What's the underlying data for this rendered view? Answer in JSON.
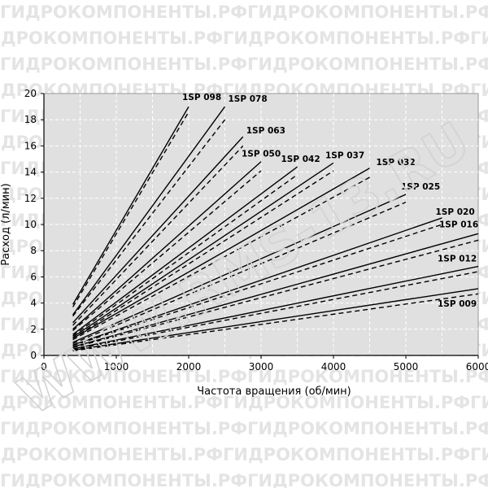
{
  "watermark": {
    "line_text": "ГИДРОКОМПОНЕНТЫ.РФГИДРОКОМПОНЕНТЫ.РФГИДРОКОМПОНЕНТЫ.РФ",
    "url_text": "WWW.RMS-13.RU"
  },
  "chart_data": {
    "type": "line",
    "xlabel": "Частота вращения (об/мин)",
    "ylabel": "Расход (л/мин)",
    "xlim": [
      0,
      6000
    ],
    "ylim": [
      0,
      20
    ],
    "x_ticks": [
      0,
      1000,
      2000,
      3000,
      4000,
      5000,
      6000
    ],
    "y_ticks": [
      0,
      2,
      4,
      6,
      8,
      10,
      12,
      14,
      16,
      18,
      20
    ],
    "grid": true,
    "plot_background": "#e0e0e0",
    "line_styles": {
      "solid": "theoretical",
      "dashed": "actual"
    },
    "series": [
      {
        "name": "1SP 098",
        "x_start": 400,
        "x_end": 2000,
        "solid": [
          3.9,
          19.0
        ],
        "dashed": [
          3.7,
          18.6
        ]
      },
      {
        "name": "1SP 078",
        "x_start": 400,
        "x_end": 2500,
        "solid": [
          3.1,
          19.0
        ],
        "dashed": [
          3.0,
          18.0
        ]
      },
      {
        "name": "1SP 063",
        "x_start": 400,
        "x_end": 2750,
        "solid": [
          2.5,
          16.7
        ],
        "dashed": [
          2.3,
          16.0
        ]
      },
      {
        "name": "1SP 050",
        "x_start": 400,
        "x_end": 3000,
        "solid": [
          2.0,
          14.8
        ],
        "dashed": [
          1.9,
          14.1
        ]
      },
      {
        "name": "1SP 042",
        "x_start": 400,
        "x_end": 3500,
        "solid": [
          1.6,
          14.4
        ],
        "dashed": [
          1.5,
          13.8
        ]
      },
      {
        "name": "1SP 037",
        "x_start": 400,
        "x_end": 4000,
        "solid": [
          1.4,
          14.7
        ],
        "dashed": [
          1.3,
          14.1
        ]
      },
      {
        "name": "1SP 032",
        "x_start": 400,
        "x_end": 4500,
        "solid": [
          1.3,
          14.3
        ],
        "dashed": [
          1.2,
          13.6
        ]
      },
      {
        "name": "1SP 025",
        "x_start": 400,
        "x_end": 5000,
        "solid": [
          1.0,
          12.3
        ],
        "dashed": [
          0.9,
          11.7
        ]
      },
      {
        "name": "1SP 020",
        "x_start": 400,
        "x_end": 5500,
        "solid": [
          0.8,
          10.5
        ],
        "dashed": [
          0.75,
          10.0
        ]
      },
      {
        "name": "1SP 016",
        "x_start": 400,
        "x_end": 6000,
        "solid": [
          0.65,
          9.3
        ],
        "dashed": [
          0.6,
          8.8
        ]
      },
      {
        "name": "1SP 012",
        "x_start": 400,
        "x_end": 6000,
        "solid": [
          0.5,
          6.8
        ],
        "dashed": [
          0.45,
          6.4
        ]
      },
      {
        "name": "1SP 009",
        "x_start": 400,
        "x_end": 6000,
        "solid": [
          0.4,
          5.1
        ],
        "dashed": [
          0.35,
          4.7
        ]
      }
    ]
  }
}
